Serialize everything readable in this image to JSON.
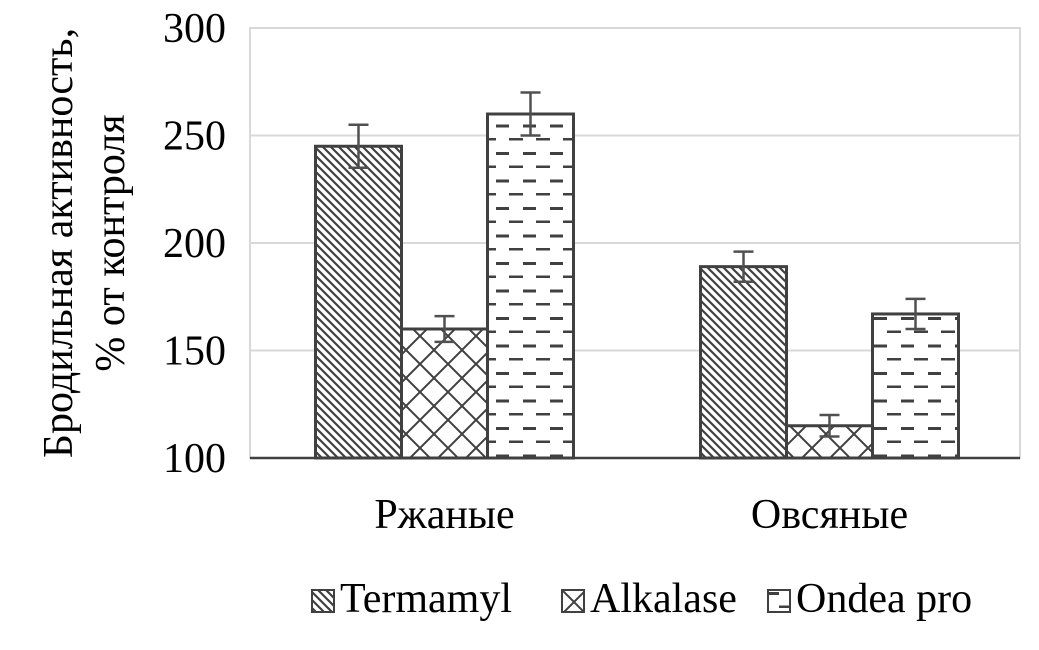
{
  "chart_data": {
    "type": "bar",
    "title": "",
    "xlabel": "",
    "ylabel": [
      "Бродильная активность,",
      "% от контроля"
    ],
    "ylim": [
      100,
      300
    ],
    "yticks": [
      100,
      150,
      200,
      250,
      300
    ],
    "grid": true,
    "legend_position": "bottom",
    "categories": [
      "Ржаные",
      "Овсяные"
    ],
    "series": [
      {
        "name": "Termamyl",
        "pattern": "diagonal",
        "values": [
          245,
          189
        ],
        "errors": [
          10,
          7
        ]
      },
      {
        "name": "Alkalase",
        "pattern": "zigzag",
        "values": [
          160,
          115
        ],
        "errors": [
          6,
          5
        ]
      },
      {
        "name": "Ondea pro",
        "pattern": "dashes",
        "values": [
          260,
          167
        ],
        "errors": [
          10,
          7
        ]
      }
    ],
    "colors": {
      "bar_stroke": "#404040",
      "grid": "#d9d9d9",
      "axis": "#404040"
    }
  }
}
